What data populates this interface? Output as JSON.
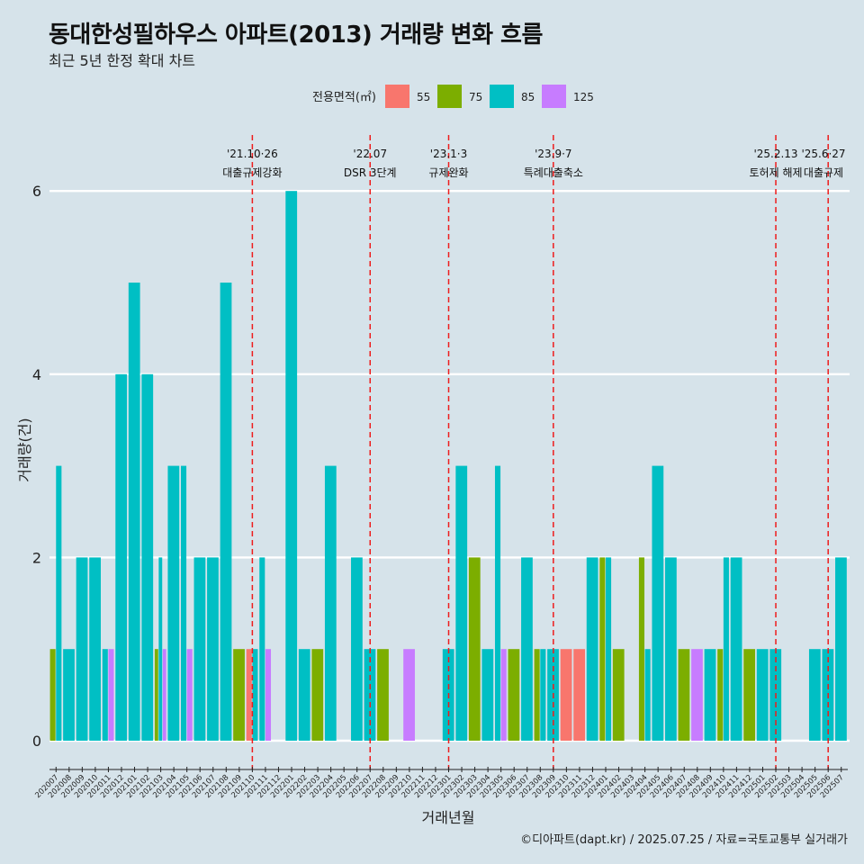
{
  "title": "동대한성필하우스 아파트(2013) 거래량 변화 흐름",
  "subtitle": "최근 5년 한정 확대 차트",
  "caption": "©디아파트(dapt.kr) / 2025.07.25 / 자료=국토교통부 실거래가",
  "chart_data": {
    "type": "bar",
    "xlabel": "거래년월",
    "ylabel": "거래량(건)",
    "ylim": [
      0,
      6.4
    ],
    "yticks": [
      0,
      2,
      4,
      6
    ],
    "legend": {
      "title": "전용면적(㎡)",
      "position": "top",
      "entries": [
        {
          "name": "55",
          "color": "#f8766d"
        },
        {
          "name": "75",
          "color": "#7cae00"
        },
        {
          "name": "85",
          "color": "#00bfc4"
        },
        {
          "name": "125",
          "color": "#c77cff"
        }
      ]
    },
    "categories": [
      "202007",
      "202008",
      "202009",
      "202010",
      "202011",
      "202012",
      "202101",
      "202102",
      "202103",
      "202104",
      "202105",
      "202106",
      "202107",
      "202108",
      "202109",
      "202110",
      "202111",
      "202112",
      "202201",
      "202202",
      "202203",
      "202204",
      "202205",
      "202206",
      "202207",
      "202208",
      "202209",
      "202210",
      "202211",
      "202212",
      "202301",
      "202302",
      "202303",
      "202304",
      "202305",
      "202306",
      "202307",
      "202308",
      "202309",
      "202310",
      "202311",
      "202312",
      "202401",
      "202402",
      "202403",
      "202404",
      "202405",
      "202406",
      "202407",
      "202408",
      "202409",
      "202410",
      "202411",
      "202412",
      "202501",
      "202502",
      "202503",
      "202504",
      "202505",
      "202506",
      "202507"
    ],
    "series": [
      {
        "name": "55",
        "values": [
          0,
          0,
          0,
          0,
          0,
          0,
          0,
          0,
          0,
          0,
          0,
          0,
          0,
          0,
          0,
          1,
          0,
          0,
          0,
          0,
          0,
          0,
          0,
          0,
          0,
          0,
          0,
          0,
          0,
          0,
          0,
          0,
          0,
          0,
          0,
          0,
          0,
          0,
          0,
          1,
          1,
          0,
          0,
          0,
          0,
          0,
          0,
          0,
          0,
          0,
          0,
          0,
          0,
          0,
          0,
          0,
          0,
          0,
          0,
          0,
          0
        ]
      },
      {
        "name": "75",
        "values": [
          1,
          0,
          0,
          0,
          0,
          0,
          0,
          0,
          1,
          0,
          0,
          0,
          0,
          0,
          1,
          0,
          0,
          0,
          0,
          0,
          1,
          0,
          0,
          0,
          0,
          1,
          0,
          0,
          0,
          0,
          0,
          0,
          2,
          0,
          0,
          1,
          0,
          1,
          0,
          0,
          0,
          0,
          2,
          1,
          0,
          2,
          0,
          0,
          1,
          0,
          0,
          1,
          0,
          1,
          0,
          0,
          0,
          0,
          0,
          0,
          0
        ]
      },
      {
        "name": "85",
        "values": [
          3,
          1,
          2,
          2,
          1,
          4,
          5,
          4,
          2,
          3,
          3,
          2,
          2,
          5,
          0,
          1,
          2,
          0,
          6,
          1,
          0,
          3,
          0,
          2,
          1,
          0,
          0,
          0,
          0,
          0,
          1,
          3,
          0,
          1,
          3,
          0,
          2,
          1,
          1,
          0,
          0,
          2,
          2,
          0,
          0,
          1,
          3,
          2,
          0,
          0,
          1,
          2,
          2,
          0,
          1,
          1,
          0,
          0,
          1,
          1,
          2
        ]
      },
      {
        "name": "125",
        "values": [
          0,
          0,
          0,
          0,
          1,
          0,
          0,
          0,
          1,
          0,
          1,
          0,
          0,
          0,
          0,
          0,
          1,
          0,
          0,
          0,
          0,
          0,
          0,
          0,
          0,
          0,
          0,
          1,
          0,
          0,
          0,
          0,
          0,
          0,
          1,
          0,
          0,
          0,
          0,
          0,
          0,
          0,
          0,
          0,
          0,
          0,
          0,
          0,
          0,
          1,
          0,
          0,
          0,
          0,
          0,
          0,
          0,
          0,
          0,
          0,
          0
        ]
      }
    ],
    "annotations": [
      {
        "month": "202110",
        "date": "'21.10·26",
        "label": "대출규제강화"
      },
      {
        "month": "202207",
        "date": "'22.07",
        "label": "DSR 3단계"
      },
      {
        "month": "202301",
        "date": "'23.1·3",
        "label": "규제완화"
      },
      {
        "month": "202309",
        "date": "'23.9·7",
        "label": "특례대출축소"
      },
      {
        "month": "202502",
        "date": "'25.2.13",
        "label": "토허제 해제"
      },
      {
        "month": "202506",
        "date": "'25.6·27",
        "label": "대출규제"
      }
    ]
  }
}
